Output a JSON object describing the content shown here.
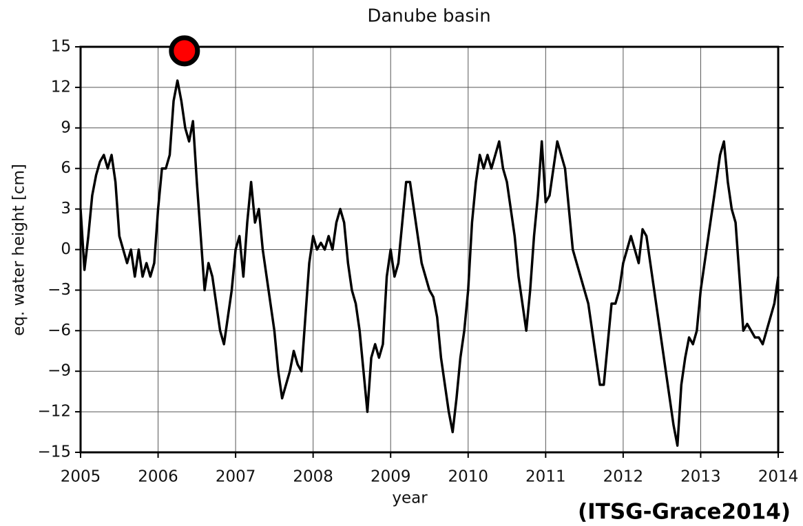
{
  "chart_data": {
    "type": "line",
    "title": "Danube basin",
    "xlabel": "year",
    "ylabel": "eq. water height [cm]",
    "annotation": "(ITSG-Grace2014)",
    "xlim": [
      2005,
      2014
    ],
    "ylim": [
      -15,
      15
    ],
    "xticks": [
      2005,
      2006,
      2007,
      2008,
      2009,
      2010,
      2011,
      2012,
      2013,
      2014
    ],
    "yticks": [
      {
        "value": -15,
        "label": "−15"
      },
      {
        "value": -12,
        "label": "−12"
      },
      {
        "value": -9,
        "label": "−9"
      },
      {
        "value": -6,
        "label": "−6"
      },
      {
        "value": -3,
        "label": "−3"
      },
      0,
      3,
      6,
      9,
      12,
      15
    ],
    "grid": true,
    "marker": {
      "x": 2006.34,
      "y": 14.7,
      "color": "#ff0000"
    },
    "x": [
      2005,
      2005.05,
      2005.1,
      2005.15,
      2005.2,
      2005.25,
      2005.3,
      2005.35,
      2005.4,
      2005.45,
      2005.5,
      2005.55,
      2005.6,
      2005.65,
      2005.7,
      2005.75,
      2005.8,
      2005.85,
      2005.9,
      2005.95,
      2006,
      2006.05,
      2006.1,
      2006.15,
      2006.2,
      2006.25,
      2006.3,
      2006.35,
      2006.4,
      2006.45,
      2006.5,
      2006.55,
      2006.6,
      2006.65,
      2006.7,
      2006.75,
      2006.8,
      2006.85,
      2006.9,
      2006.95,
      2007,
      2007.05,
      2007.1,
      2007.15,
      2007.2,
      2007.25,
      2007.3,
      2007.35,
      2007.4,
      2007.45,
      2007.5,
      2007.55,
      2007.6,
      2007.65,
      2007.7,
      2007.75,
      2007.8,
      2007.85,
      2007.9,
      2007.95,
      2008,
      2008.05,
      2008.1,
      2008.15,
      2008.2,
      2008.25,
      2008.3,
      2008.35,
      2008.4,
      2008.45,
      2008.5,
      2008.55,
      2008.6,
      2008.65,
      2008.7,
      2008.75,
      2008.8,
      2008.85,
      2008.9,
      2008.95,
      2009,
      2009.05,
      2009.1,
      2009.15,
      2009.2,
      2009.25,
      2009.3,
      2009.35,
      2009.4,
      2009.45,
      2009.5,
      2009.55,
      2009.6,
      2009.65,
      2009.7,
      2009.75,
      2009.8,
      2009.85,
      2009.9,
      2009.95,
      2010,
      2010.05,
      2010.1,
      2010.15,
      2010.2,
      2010.25,
      2010.3,
      2010.35,
      2010.4,
      2010.45,
      2010.5,
      2010.55,
      2010.6,
      2010.65,
      2010.7,
      2010.75,
      2010.8,
      2010.85,
      2010.9,
      2010.95,
      2011,
      2011.05,
      2011.1,
      2011.15,
      2011.2,
      2011.25,
      2011.3,
      2011.35,
      2011.4,
      2011.45,
      2011.5,
      2011.55,
      2011.6,
      2011.65,
      2011.7,
      2011.75,
      2011.8,
      2011.85,
      2011.9,
      2011.95,
      2012,
      2012.05,
      2012.1,
      2012.15,
      2012.2,
      2012.25,
      2012.3,
      2012.35,
      2012.4,
      2012.45,
      2012.5,
      2012.55,
      2012.6,
      2012.65,
      2012.7,
      2012.75,
      2012.8,
      2012.85,
      2012.9,
      2012.95,
      2013,
      2013.05,
      2013.1,
      2013.15,
      2013.2,
      2013.25,
      2013.3,
      2013.35,
      2013.4,
      2013.45,
      2013.5,
      2013.55,
      2013.6,
      2013.65,
      2013.7,
      2013.75,
      2013.8,
      2013.85,
      2013.9,
      2013.95,
      2014
    ],
    "series": [
      {
        "color": "#000000",
        "values": [
          3,
          -1.5,
          1,
          4,
          5.5,
          6.5,
          7,
          6,
          7,
          5,
          1,
          0,
          -1,
          0,
          -2,
          0,
          -2,
          -1,
          -2,
          -1,
          3,
          6,
          6,
          7,
          11,
          12.5,
          11,
          9,
          8,
          9.5,
          5,
          1,
          -3,
          -1,
          -2,
          -4,
          -6,
          -7,
          -5,
          -3,
          0,
          1,
          -2,
          2,
          5,
          2,
          3,
          0,
          -2,
          -4,
          -6,
          -9,
          -11,
          -10,
          -9,
          -7.5,
          -8.5,
          -9,
          -5,
          -1,
          1,
          0,
          0.5,
          0,
          1,
          0,
          2,
          3,
          2,
          -1,
          -3,
          -4,
          -6,
          -9,
          -12,
          -8,
          -7,
          -8,
          -7,
          -2,
          0,
          -2,
          -1,
          2,
          5,
          5,
          3,
          1,
          -1,
          -2,
          -3,
          -3.5,
          -5,
          -8,
          -10,
          -12,
          -13.5,
          -11,
          -8,
          -6,
          -3,
          2,
          5,
          7,
          6,
          7,
          6,
          7,
          8,
          6,
          5,
          3,
          1,
          -2,
          -4,
          -6,
          -3,
          1,
          4,
          8,
          3.5,
          4,
          6,
          8,
          7,
          6,
          3,
          0,
          -1,
          -2,
          -3,
          -4,
          -6,
          -8,
          -10,
          -10,
          -7,
          -4,
          -4,
          -3,
          -1,
          0,
          1,
          0,
          -1,
          1.5,
          1,
          -1,
          -3,
          -5,
          -7,
          -9,
          -11,
          -13,
          -14.5,
          -10,
          -8,
          -6.5,
          -7,
          -6,
          -3,
          -1,
          1,
          3,
          5,
          7,
          8,
          5,
          3,
          2,
          -2,
          -6,
          -5.5,
          -6,
          -6.5,
          -6.5,
          -7,
          -6,
          -5,
          -4,
          -2
        ]
      }
    ]
  }
}
